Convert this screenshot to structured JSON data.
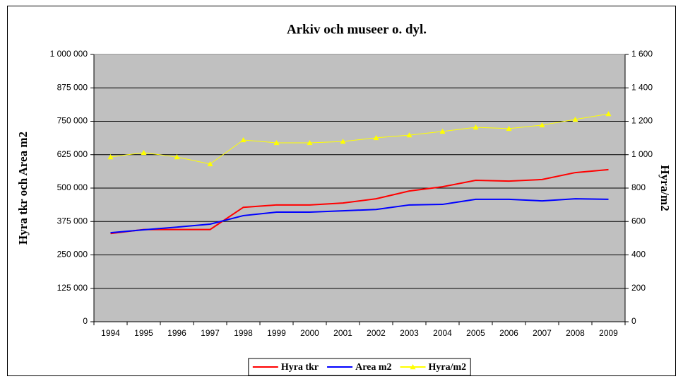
{
  "chart_data": {
    "type": "line",
    "title": "Arkiv och museer o. dyl.",
    "ylabel": "Hyra tkr och Area m2",
    "y2label": "Hyra/m2",
    "categories": [
      "1994",
      "1995",
      "1996",
      "1997",
      "1998",
      "1999",
      "2000",
      "2001",
      "2002",
      "2003",
      "2004",
      "2005",
      "2006",
      "2007",
      "2008",
      "2009"
    ],
    "series": [
      {
        "name": "Hyra tkr",
        "color": "#ff0000",
        "values": [
          330000,
          345000,
          345000,
          345000,
          428000,
          437000,
          437000,
          444000,
          460000,
          489000,
          505000,
          529000,
          526000,
          532000,
          558000,
          569000
        ]
      },
      {
        "name": "Area m2",
        "color": "#0000ff",
        "values": [
          333000,
          344000,
          354000,
          365000,
          397000,
          410000,
          410000,
          415000,
          420000,
          437000,
          439000,
          458000,
          458000,
          452000,
          460000,
          458000
        ]
      },
      {
        "name": "Hyra/m2",
        "color": "#ffff00",
        "axis": "y2",
        "marker": "triangle",
        "values": [
          986,
          1012,
          986,
          944,
          1088,
          1071,
          1071,
          1079,
          1101,
          1117,
          1139,
          1164,
          1156,
          1177,
          1211,
          1244
        ]
      }
    ],
    "ylim": [
      0,
      1000000
    ],
    "yticks": [
      0,
      {
        "value": 125000,
        "label": "125 000"
      },
      {
        "value": 250000,
        "label": "250 000"
      },
      {
        "value": 375000,
        "label": "375 000"
      },
      {
        "value": 500000,
        "label": "500 000"
      },
      {
        "value": 625000,
        "label": "625 000"
      },
      {
        "value": 750000,
        "label": "750 000"
      },
      {
        "value": 875000,
        "label": "875 000"
      },
      {
        "value": 1000000,
        "label": "1 000 000"
      }
    ],
    "y2lim": [
      0,
      1600
    ],
    "y2ticks": [
      0,
      200,
      400,
      600,
      800,
      {
        "value": 1000,
        "label": "1 000"
      },
      {
        "value": 1200,
        "label": "1 200"
      },
      {
        "value": 1400,
        "label": "1 400"
      },
      {
        "value": 1600,
        "label": "1 600"
      }
    ],
    "grid": true,
    "legend": "bottom",
    "plot_background": "#c0c0c0"
  }
}
